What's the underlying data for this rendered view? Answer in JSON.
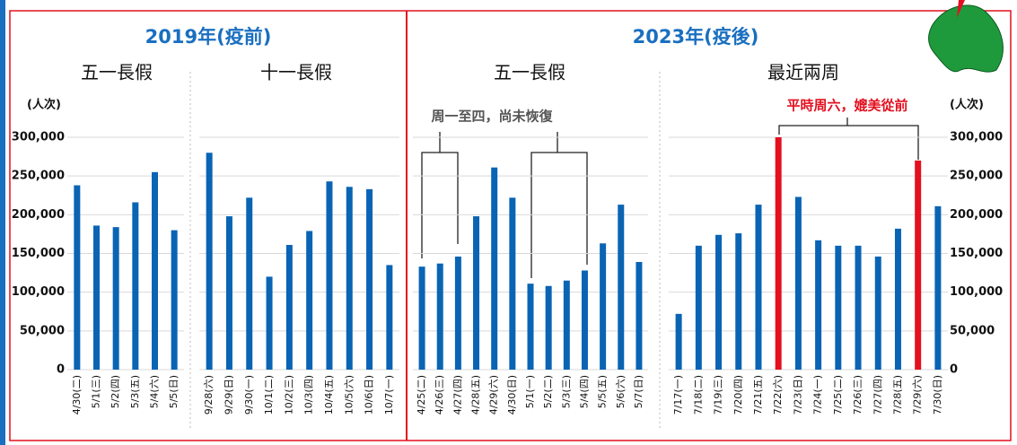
{
  "groups": [
    "2019年(疫前)",
    "2023年(疫後)"
  ],
  "chart_data": [
    {
      "type": "bar",
      "title": "五一長假",
      "y_label": "(人次)",
      "color": "#0a64b4",
      "categories": [
        "4/30(二)",
        "5/1(三)",
        "5/2(四)",
        "5/3(五)",
        "5/4(六)",
        "5/5(日)"
      ],
      "values": [
        238000,
        186000,
        184000,
        216000,
        255000,
        180000
      ],
      "ylim": [
        0,
        300000
      ],
      "yticks": [
        0,
        {
          "value": 50000,
          "label": "50,000"
        },
        {
          "value": 100000,
          "label": "100,000"
        },
        {
          "value": 150000,
          "label": "150,000"
        },
        {
          "value": 200000,
          "label": "200,000"
        },
        {
          "value": 250000,
          "label": "250,000"
        },
        {
          "value": 300000,
          "label": "300,000"
        }
      ],
      "grid": true
    },
    {
      "type": "bar",
      "title": "十一長假",
      "color": "#0a64b4",
      "categories": [
        "9/28(六)",
        "9/29(日)",
        "9/30(一)",
        "10/1(二)",
        "10/2(三)",
        "10/3(四)",
        "10/4(五)",
        "10/5(六)",
        "10/6(日)",
        "10/7(一)"
      ],
      "values": [
        280000,
        198000,
        222000,
        120000,
        161000,
        179000,
        243000,
        236000,
        233000,
        135000
      ],
      "ylim": [
        0,
        300000
      ],
      "yticks": [
        0,
        {
          "value": 50000,
          "label": "50,000"
        },
        {
          "value": 100000,
          "label": "100,000"
        },
        {
          "value": 150000,
          "label": "150,000"
        },
        {
          "value": 200000,
          "label": "200,000"
        },
        {
          "value": 250000,
          "label": "250,000"
        },
        {
          "value": 300000,
          "label": "300,000"
        }
      ],
      "grid": true
    },
    {
      "type": "bar",
      "title": "五一長假",
      "annotation": "周一至四，尚未恢復",
      "color": "#0a64b4",
      "categories": [
        "4/25(二)",
        "4/26(三)",
        "4/27(四)",
        "4/28(五)",
        "4/29(六)",
        "4/30(日)",
        "5/1(一)",
        "5/2(二)",
        "5/3(三)",
        "5/4(四)",
        "5/5(五)",
        "5/6(六)",
        "5/7(日)"
      ],
      "values": [
        133000,
        137000,
        146000,
        198000,
        261000,
        222000,
        111000,
        108000,
        115000,
        128000,
        163000,
        213000,
        139000
      ],
      "ylim": [
        0,
        300000
      ],
      "yticks": [
        0,
        {
          "value": 50000,
          "label": "50,000"
        },
        {
          "value": 100000,
          "label": "100,000"
        },
        {
          "value": 150000,
          "label": "150,000"
        },
        {
          "value": 200000,
          "label": "200,000"
        },
        {
          "value": 250000,
          "label": "250,000"
        },
        {
          "value": 300000,
          "label": "300,000"
        }
      ],
      "grid": true
    },
    {
      "type": "bar",
      "title": "最近兩周",
      "y_label": "(人次)",
      "annotation": "平時周六，媲美從前",
      "color": "#0a64b4",
      "colors": [
        "#0a64b4",
        "#0a64b4",
        "#0a64b4",
        "#0a64b4",
        "#0a64b4",
        "#e3101f",
        "#0a64b4",
        "#0a64b4",
        "#0a64b4",
        "#0a64b4",
        "#0a64b4",
        "#0a64b4",
        "#e3101f",
        "#0a64b4"
      ],
      "categories": [
        "7/17(一)",
        "7/18(二)",
        "7/19(三)",
        "7/20(四)",
        "7/21(五)",
        "7/22(六)",
        "7/23(日)",
        "7/24(一)",
        "7/25(二)",
        "7/26(三)",
        "7/27(四)",
        "7/28(五)",
        "7/29(六)",
        "7/30(日)"
      ],
      "values": [
        72000,
        160000,
        174000,
        176000,
        213000,
        300000,
        223000,
        167000,
        160000,
        160000,
        146000,
        182000,
        270000,
        211000
      ],
      "ylim": [
        0,
        300000
      ],
      "yticks": [
        0,
        {
          "value": 50000,
          "label": "50,000"
        },
        {
          "value": 100000,
          "label": "100,000"
        },
        {
          "value": 150000,
          "label": "150,000"
        },
        {
          "value": 200000,
          "label": "200,000"
        },
        {
          "value": 250000,
          "label": "250,000"
        },
        {
          "value": 300000,
          "label": "300,000"
        }
      ],
      "grid": true
    }
  ]
}
